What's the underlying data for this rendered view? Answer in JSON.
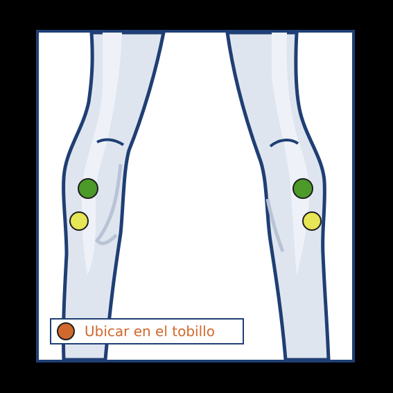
{
  "legend": {
    "label": "Ubicar en el tobillo",
    "dot_color": "#d1692f"
  },
  "colors": {
    "frame_border": "#1f3f74",
    "leg_outline": "#1f3f74",
    "leg_fill": "#dfe5ef",
    "green_marker": "#4c9a2a",
    "yellow_marker": "#e7e656",
    "marker_outline": "#1e1e1e"
  },
  "figure": {
    "subject": "legs-front-view",
    "markers": [
      {
        "name": "left-knee-green-marker",
        "color": "green"
      },
      {
        "name": "left-knee-yellow-marker",
        "color": "yellow"
      },
      {
        "name": "right-knee-green-marker",
        "color": "green"
      },
      {
        "name": "right-knee-yellow-marker",
        "color": "yellow"
      }
    ]
  }
}
